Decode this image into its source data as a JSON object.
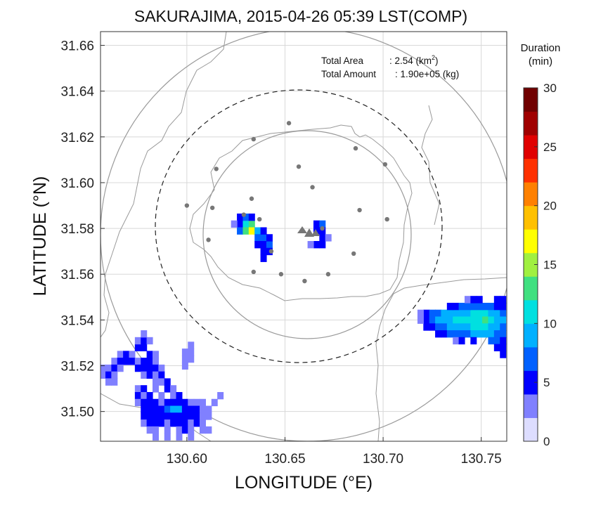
{
  "chart_data": {
    "type": "heatmap",
    "title": "SAKURAJIMA, 2015-04-26 05:39 LST(COMP)",
    "xlabel": "LONGITUDE (°E)",
    "ylabel": "LATITUDE (°N)",
    "xlim": [
      130.556,
      130.763
    ],
    "ylim": [
      31.487,
      31.666
    ],
    "xticks": [
      130.6,
      130.65,
      130.7,
      130.75
    ],
    "xtick_labels": [
      "130.60",
      "130.65",
      "130.70",
      "130.75"
    ],
    "yticks": [
      31.5,
      31.52,
      31.54,
      31.56,
      31.58,
      31.6,
      31.62,
      31.64,
      31.66
    ],
    "ytick_labels": [
      "31.50",
      "31.52",
      "31.54",
      "31.56",
      "31.58",
      "31.60",
      "31.62",
      "31.64",
      "31.66"
    ],
    "grid": true,
    "annotations": {
      "area_label": "Total Area",
      "area_value": ": 2.54 (km",
      "area_sup": "2",
      "area_close": ")",
      "amount_label": "Total Amount",
      "amount_value": ": 1.90e+05 (kg)"
    },
    "colorbar": {
      "title_line1": "Duration",
      "title_line2": "(min)",
      "min": 0,
      "max": 30,
      "tick_values": [
        0,
        5,
        10,
        15,
        20,
        25,
        30
      ],
      "tick_labels": [
        "0",
        "5",
        "10",
        "15",
        "20",
        "25",
        "30"
      ],
      "colors": [
        "#ddddff",
        "#8080ff",
        "#0000ff",
        "#0060ff",
        "#00b0ff",
        "#00e0e0",
        "#40e080",
        "#a0f040",
        "#ffff00",
        "#ffc000",
        "#ff8000",
        "#ff3000",
        "#e00000",
        "#a00000",
        "#700000"
      ]
    },
    "volcano": {
      "lon": 130.658,
      "lat": 31.579
    },
    "stations": [
      [
        130.652,
        31.626
      ],
      [
        130.634,
        31.619
      ],
      [
        130.686,
        31.615
      ],
      [
        130.657,
        31.607
      ],
      [
        130.701,
        31.608
      ],
      [
        130.615,
        31.606
      ],
      [
        130.664,
        31.598
      ],
      [
        130.6,
        31.59
      ],
      [
        130.633,
        31.593
      ],
      [
        130.613,
        31.589
      ],
      [
        130.688,
        31.588
      ],
      [
        130.629,
        31.586
      ],
      [
        130.702,
        31.584
      ],
      [
        130.637,
        31.584
      ],
      [
        130.611,
        31.575
      ],
      [
        130.669,
        31.58
      ],
      [
        130.643,
        31.57
      ],
      [
        130.685,
        31.569
      ],
      [
        130.634,
        31.561
      ],
      [
        130.648,
        31.56
      ],
      [
        130.672,
        31.56
      ],
      [
        130.66,
        31.557
      ]
    ],
    "rings_km": [
      5,
      10,
      15
    ],
    "cells": [
      [
        130.627,
        31.582,
        5
      ],
      [
        130.63,
        31.582,
        11
      ],
      [
        130.633,
        31.582,
        13
      ],
      [
        130.627,
        31.579,
        7
      ],
      [
        130.63,
        31.579,
        13
      ],
      [
        130.633,
        31.579,
        16
      ],
      [
        130.636,
        31.579,
        9
      ],
      [
        130.627,
        31.585,
        4
      ],
      [
        130.63,
        31.585,
        6
      ],
      [
        130.633,
        31.585,
        5
      ],
      [
        130.636,
        31.576,
        7
      ],
      [
        130.639,
        31.576,
        6
      ],
      [
        130.636,
        31.573,
        5
      ],
      [
        130.639,
        31.573,
        5
      ],
      [
        130.639,
        31.57,
        4
      ],
      [
        130.642,
        31.573,
        6
      ],
      [
        130.642,
        31.576,
        4
      ],
      [
        130.642,
        31.57,
        5
      ],
      [
        130.624,
        31.582,
        3
      ],
      [
        130.639,
        31.579,
        5
      ],
      [
        130.639,
        31.567,
        4
      ],
      [
        130.666,
        31.582,
        5
      ],
      [
        130.669,
        31.582,
        6
      ],
      [
        130.666,
        31.579,
        4
      ],
      [
        130.669,
        31.579,
        5
      ],
      [
        130.669,
        31.576,
        4
      ],
      [
        130.666,
        31.573,
        5
      ],
      [
        130.669,
        31.573,
        4
      ],
      [
        130.663,
        31.573,
        3
      ],
      [
        130.672,
        31.576,
        3
      ],
      [
        130.722,
        31.543,
        5
      ],
      [
        130.725,
        31.543,
        6
      ],
      [
        130.728,
        31.543,
        7
      ],
      [
        130.731,
        31.543,
        8
      ],
      [
        130.734,
        31.543,
        8
      ],
      [
        130.737,
        31.543,
        9
      ],
      [
        130.74,
        31.543,
        9
      ],
      [
        130.743,
        31.543,
        9
      ],
      [
        130.746,
        31.543,
        10
      ],
      [
        130.749,
        31.543,
        10
      ],
      [
        130.752,
        31.543,
        10
      ],
      [
        130.755,
        31.543,
        9
      ],
      [
        130.758,
        31.543,
        8
      ],
      [
        130.761,
        31.543,
        7
      ],
      [
        130.722,
        31.54,
        5
      ],
      [
        130.725,
        31.54,
        7
      ],
      [
        130.728,
        31.54,
        8
      ],
      [
        130.731,
        31.54,
        9
      ],
      [
        130.734,
        31.54,
        9
      ],
      [
        130.737,
        31.54,
        10
      ],
      [
        130.74,
        31.54,
        10
      ],
      [
        130.743,
        31.54,
        10
      ],
      [
        130.746,
        31.54,
        11
      ],
      [
        130.749,
        31.54,
        11
      ],
      [
        130.752,
        31.54,
        12
      ],
      [
        130.755,
        31.54,
        10
      ],
      [
        130.758,
        31.54,
        9
      ],
      [
        130.761,
        31.54,
        8
      ],
      [
        130.722,
        31.537,
        4
      ],
      [
        130.725,
        31.537,
        5
      ],
      [
        130.728,
        31.537,
        6
      ],
      [
        130.731,
        31.537,
        7
      ],
      [
        130.734,
        31.537,
        8
      ],
      [
        130.737,
        31.537,
        9
      ],
      [
        130.74,
        31.537,
        9
      ],
      [
        130.743,
        31.537,
        9
      ],
      [
        130.746,
        31.537,
        10
      ],
      [
        130.749,
        31.537,
        10
      ],
      [
        130.752,
        31.537,
        11
      ],
      [
        130.755,
        31.537,
        9
      ],
      [
        130.758,
        31.537,
        8
      ],
      [
        130.761,
        31.537,
        7
      ],
      [
        130.728,
        31.534,
        4
      ],
      [
        130.731,
        31.534,
        5
      ],
      [
        130.734,
        31.534,
        6
      ],
      [
        130.737,
        31.534,
        7
      ],
      [
        130.74,
        31.534,
        7
      ],
      [
        130.743,
        31.534,
        6
      ],
      [
        130.746,
        31.534,
        8
      ],
      [
        130.749,
        31.534,
        8
      ],
      [
        130.752,
        31.534,
        9
      ],
      [
        130.755,
        31.534,
        8
      ],
      [
        130.758,
        31.534,
        7
      ],
      [
        130.761,
        31.534,
        6
      ],
      [
        130.734,
        31.546,
        4
      ],
      [
        130.737,
        31.546,
        5
      ],
      [
        130.74,
        31.546,
        6
      ],
      [
        130.743,
        31.546,
        6
      ],
      [
        130.746,
        31.546,
        7
      ],
      [
        130.749,
        31.546,
        7
      ],
      [
        130.752,
        31.546,
        6
      ],
      [
        130.755,
        31.546,
        6
      ],
      [
        130.758,
        31.546,
        5
      ],
      [
        130.761,
        31.546,
        5
      ],
      [
        130.743,
        31.549,
        3
      ],
      [
        130.746,
        31.549,
        4
      ],
      [
        130.749,
        31.549,
        4
      ],
      [
        130.758,
        31.549,
        4
      ],
      [
        130.761,
        31.549,
        4
      ],
      [
        130.755,
        31.531,
        6
      ],
      [
        130.758,
        31.531,
        7
      ],
      [
        130.761,
        31.531,
        5
      ],
      [
        130.758,
        31.528,
        5
      ],
      [
        130.761,
        31.528,
        4
      ],
      [
        130.737,
        31.531,
        3
      ],
      [
        130.74,
        31.531,
        4
      ],
      [
        130.746,
        31.531,
        4
      ],
      [
        130.761,
        31.525,
        4
      ],
      [
        130.719,
        31.54,
        3
      ],
      [
        130.719,
        31.543,
        3
      ],
      [
        130.566,
        31.525,
        3
      ],
      [
        130.569,
        31.525,
        4
      ],
      [
        130.572,
        31.525,
        3
      ],
      [
        130.575,
        31.528,
        4
      ],
      [
        130.578,
        31.528,
        5
      ],
      [
        130.575,
        31.531,
        3
      ],
      [
        130.578,
        31.531,
        4
      ],
      [
        130.581,
        31.531,
        3
      ],
      [
        130.563,
        31.522,
        3
      ],
      [
        130.566,
        31.522,
        4
      ],
      [
        130.569,
        31.522,
        5
      ],
      [
        130.572,
        31.522,
        4
      ],
      [
        130.575,
        31.522,
        3
      ],
      [
        130.578,
        31.522,
        4
      ],
      [
        130.581,
        31.522,
        5
      ],
      [
        130.584,
        31.522,
        3
      ],
      [
        130.557,
        31.519,
        3
      ],
      [
        130.56,
        31.519,
        3
      ],
      [
        130.563,
        31.519,
        4
      ],
      [
        130.566,
        31.519,
        3
      ],
      [
        130.575,
        31.519,
        4
      ],
      [
        130.578,
        31.519,
        5
      ],
      [
        130.581,
        31.519,
        4
      ],
      [
        130.584,
        31.519,
        5
      ],
      [
        130.587,
        31.519,
        3
      ],
      [
        130.557,
        31.516,
        3
      ],
      [
        130.56,
        31.516,
        4
      ],
      [
        130.563,
        31.516,
        3
      ],
      [
        130.578,
        31.516,
        3
      ],
      [
        130.581,
        31.516,
        4
      ],
      [
        130.584,
        31.516,
        3
      ],
      [
        130.587,
        31.516,
        4
      ],
      [
        130.56,
        31.513,
        3
      ],
      [
        130.563,
        31.513,
        3
      ],
      [
        130.584,
        31.513,
        3
      ],
      [
        130.587,
        31.513,
        3
      ],
      [
        130.59,
        31.513,
        4
      ],
      [
        130.581,
        31.525,
        4
      ],
      [
        130.584,
        31.525,
        3
      ],
      [
        130.578,
        31.534,
        3
      ],
      [
        130.599,
        31.523,
        3
      ],
      [
        130.602,
        31.523,
        3
      ],
      [
        130.599,
        31.526,
        3
      ],
      [
        130.602,
        31.526,
        3
      ],
      [
        130.599,
        31.52,
        3
      ],
      [
        130.602,
        31.529,
        3
      ],
      [
        130.575,
        31.51,
        3
      ],
      [
        130.578,
        31.51,
        4
      ],
      [
        130.584,
        31.51,
        3
      ],
      [
        130.59,
        31.51,
        4
      ],
      [
        130.593,
        31.51,
        3
      ],
      [
        130.575,
        31.507,
        4
      ],
      [
        130.578,
        31.507,
        3
      ],
      [
        130.581,
        31.507,
        4
      ],
      [
        130.587,
        31.507,
        3
      ],
      [
        130.593,
        31.507,
        3
      ],
      [
        130.596,
        31.507,
        4
      ],
      [
        130.575,
        31.504,
        3
      ],
      [
        130.578,
        31.504,
        4
      ],
      [
        130.581,
        31.504,
        5
      ],
      [
        130.584,
        31.504,
        4
      ],
      [
        130.587,
        31.504,
        3
      ],
      [
        130.59,
        31.504,
        5
      ],
      [
        130.593,
        31.504,
        4
      ],
      [
        130.596,
        31.504,
        5
      ],
      [
        130.599,
        31.504,
        4
      ],
      [
        130.602,
        31.504,
        3
      ],
      [
        130.605,
        31.504,
        3
      ],
      [
        130.608,
        31.504,
        3
      ],
      [
        130.578,
        31.501,
        5
      ],
      [
        130.581,
        31.501,
        4
      ],
      [
        130.584,
        31.501,
        5
      ],
      [
        130.587,
        31.501,
        4
      ],
      [
        130.59,
        31.501,
        6
      ],
      [
        130.593,
        31.501,
        8
      ],
      [
        130.596,
        31.501,
        9
      ],
      [
        130.599,
        31.501,
        5
      ],
      [
        130.602,
        31.501,
        4
      ],
      [
        130.605,
        31.501,
        5
      ],
      [
        130.608,
        31.501,
        3
      ],
      [
        130.611,
        31.501,
        3
      ],
      [
        130.614,
        31.504,
        3
      ],
      [
        130.617,
        31.507,
        3
      ],
      [
        130.578,
        31.498,
        4
      ],
      [
        130.581,
        31.498,
        5
      ],
      [
        130.584,
        31.498,
        4
      ],
      [
        130.587,
        31.498,
        5
      ],
      [
        130.59,
        31.498,
        5
      ],
      [
        130.593,
        31.498,
        4
      ],
      [
        130.596,
        31.498,
        5
      ],
      [
        130.599,
        31.498,
        4
      ],
      [
        130.602,
        31.498,
        5
      ],
      [
        130.605,
        31.498,
        4
      ],
      [
        130.608,
        31.498,
        3
      ],
      [
        130.611,
        31.498,
        3
      ],
      [
        130.578,
        31.495,
        3
      ],
      [
        130.581,
        31.495,
        4
      ],
      [
        130.584,
        31.495,
        5
      ],
      [
        130.587,
        31.495,
        4
      ],
      [
        130.59,
        31.495,
        3
      ],
      [
        130.593,
        31.495,
        4
      ],
      [
        130.596,
        31.495,
        5
      ],
      [
        130.599,
        31.495,
        4
      ],
      [
        130.602,
        31.495,
        3
      ],
      [
        130.605,
        31.495,
        4
      ],
      [
        130.608,
        31.495,
        3
      ],
      [
        130.581,
        31.492,
        3
      ],
      [
        130.584,
        31.492,
        3
      ],
      [
        130.59,
        31.492,
        3
      ],
      [
        130.596,
        31.492,
        3
      ],
      [
        130.599,
        31.492,
        4
      ],
      [
        130.602,
        31.492,
        3
      ],
      [
        130.608,
        31.492,
        3
      ],
      [
        130.611,
        31.492,
        3
      ],
      [
        130.584,
        31.489,
        3
      ],
      [
        130.59,
        31.489,
        3
      ],
      [
        130.596,
        31.489,
        3
      ],
      [
        130.602,
        31.489,
        3
      ]
    ]
  }
}
